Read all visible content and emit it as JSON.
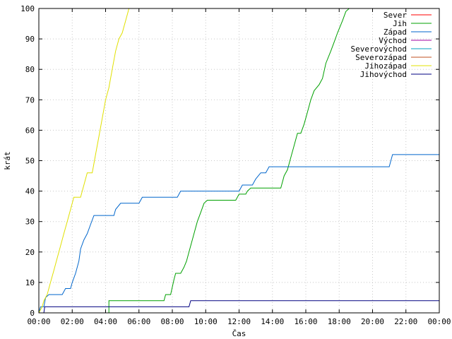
{
  "chart_data": {
    "type": "line",
    "xlabel": "Čas",
    "ylabel": "krát",
    "xlim": [
      0,
      24
    ],
    "ylim": [
      0,
      100
    ],
    "x_ticks": [
      0,
      2,
      4,
      6,
      8,
      10,
      12,
      14,
      16,
      18,
      20,
      22,
      24
    ],
    "x_tick_labels": [
      "00:00",
      "02:00",
      "04:00",
      "06:00",
      "08:00",
      "10:00",
      "12:00",
      "14:00",
      "16:00",
      "18:00",
      "20:00",
      "22:00",
      "00:00"
    ],
    "y_ticks": [
      0,
      10,
      20,
      30,
      40,
      50,
      60,
      70,
      80,
      90,
      100
    ],
    "grid": true,
    "legend_position": "top-right",
    "series": [
      {
        "name": "Sever",
        "color": "#ff0000",
        "points": []
      },
      {
        "name": "Jih",
        "color": "#00a000",
        "points": [
          [
            0,
            0
          ],
          [
            4.2,
            0
          ],
          [
            4.2,
            4
          ],
          [
            7.5,
            4
          ],
          [
            7.6,
            6
          ],
          [
            7.9,
            6
          ],
          [
            8.1,
            11
          ],
          [
            8.2,
            13
          ],
          [
            8.5,
            13
          ],
          [
            8.7,
            15
          ],
          [
            8.85,
            17
          ],
          [
            9.0,
            20
          ],
          [
            9.3,
            26
          ],
          [
            9.5,
            30
          ],
          [
            9.7,
            33
          ],
          [
            9.9,
            36
          ],
          [
            10.1,
            37
          ],
          [
            11.8,
            37
          ],
          [
            12.0,
            39
          ],
          [
            12.4,
            39
          ],
          [
            12.5,
            40
          ],
          [
            12.7,
            41
          ],
          [
            14.5,
            41
          ],
          [
            14.7,
            45
          ],
          [
            14.9,
            47
          ],
          [
            15.1,
            51
          ],
          [
            15.3,
            55
          ],
          [
            15.5,
            59
          ],
          [
            15.7,
            59
          ],
          [
            15.9,
            62
          ],
          [
            16.1,
            66
          ],
          [
            16.3,
            70
          ],
          [
            16.5,
            73
          ],
          [
            16.8,
            75
          ],
          [
            17.0,
            77
          ],
          [
            17.2,
            82
          ],
          [
            17.5,
            86
          ],
          [
            17.7,
            89
          ],
          [
            17.9,
            92
          ],
          [
            18.2,
            96
          ],
          [
            18.4,
            99
          ],
          [
            18.6,
            100
          ],
          [
            24,
            100
          ]
        ]
      },
      {
        "name": "Západ",
        "color": "#0066cc",
        "points": [
          [
            0,
            0
          ],
          [
            0.1,
            2
          ],
          [
            0.3,
            2
          ],
          [
            0.4,
            5
          ],
          [
            0.6,
            6
          ],
          [
            1.4,
            6
          ],
          [
            1.6,
            8
          ],
          [
            1.9,
            8
          ],
          [
            2.0,
            10
          ],
          [
            2.2,
            13
          ],
          [
            2.4,
            17
          ],
          [
            2.5,
            21
          ],
          [
            2.7,
            24
          ],
          [
            2.9,
            26
          ],
          [
            3.1,
            29
          ],
          [
            3.3,
            32
          ],
          [
            4.5,
            32
          ],
          [
            4.6,
            34
          ],
          [
            4.9,
            36
          ],
          [
            6.0,
            36
          ],
          [
            6.2,
            38
          ],
          [
            8.3,
            38
          ],
          [
            8.5,
            40
          ],
          [
            12.0,
            40
          ],
          [
            12.2,
            42
          ],
          [
            12.8,
            42
          ],
          [
            13.0,
            44
          ],
          [
            13.3,
            46
          ],
          [
            13.6,
            46
          ],
          [
            13.8,
            48
          ],
          [
            21.0,
            48
          ],
          [
            21.2,
            52
          ],
          [
            24,
            52
          ]
        ]
      },
      {
        "name": "Východ",
        "color": "#a000a0",
        "points": []
      },
      {
        "name": "Severovýchod",
        "color": "#00a0c0",
        "points": []
      },
      {
        "name": "Severozápad",
        "color": "#c05020",
        "points": []
      },
      {
        "name": "Jihozápad",
        "color": "#e0e000",
        "points": [
          [
            0,
            0
          ],
          [
            0.2,
            2
          ],
          [
            0.3,
            4
          ],
          [
            0.5,
            6
          ],
          [
            0.7,
            10
          ],
          [
            0.9,
            14
          ],
          [
            1.1,
            18
          ],
          [
            1.3,
            22
          ],
          [
            1.5,
            26
          ],
          [
            1.7,
            30
          ],
          [
            1.9,
            34
          ],
          [
            2.1,
            38
          ],
          [
            2.5,
            38
          ],
          [
            2.7,
            42
          ],
          [
            2.9,
            46
          ],
          [
            3.2,
            46
          ],
          [
            3.4,
            52
          ],
          [
            3.6,
            58
          ],
          [
            3.8,
            64
          ],
          [
            4.0,
            70
          ],
          [
            4.2,
            74
          ],
          [
            4.4,
            80
          ],
          [
            4.6,
            86
          ],
          [
            4.8,
            90
          ],
          [
            5.0,
            92
          ],
          [
            5.2,
            96
          ],
          [
            5.4,
            100
          ],
          [
            5.5,
            100
          ]
        ]
      },
      {
        "name": "Jihovýchod",
        "color": "#000080",
        "points": [
          [
            0,
            0
          ],
          [
            0.3,
            0
          ],
          [
            0.35,
            2
          ],
          [
            9.0,
            2
          ],
          [
            9.1,
            4
          ],
          [
            24,
            4
          ]
        ]
      }
    ]
  }
}
